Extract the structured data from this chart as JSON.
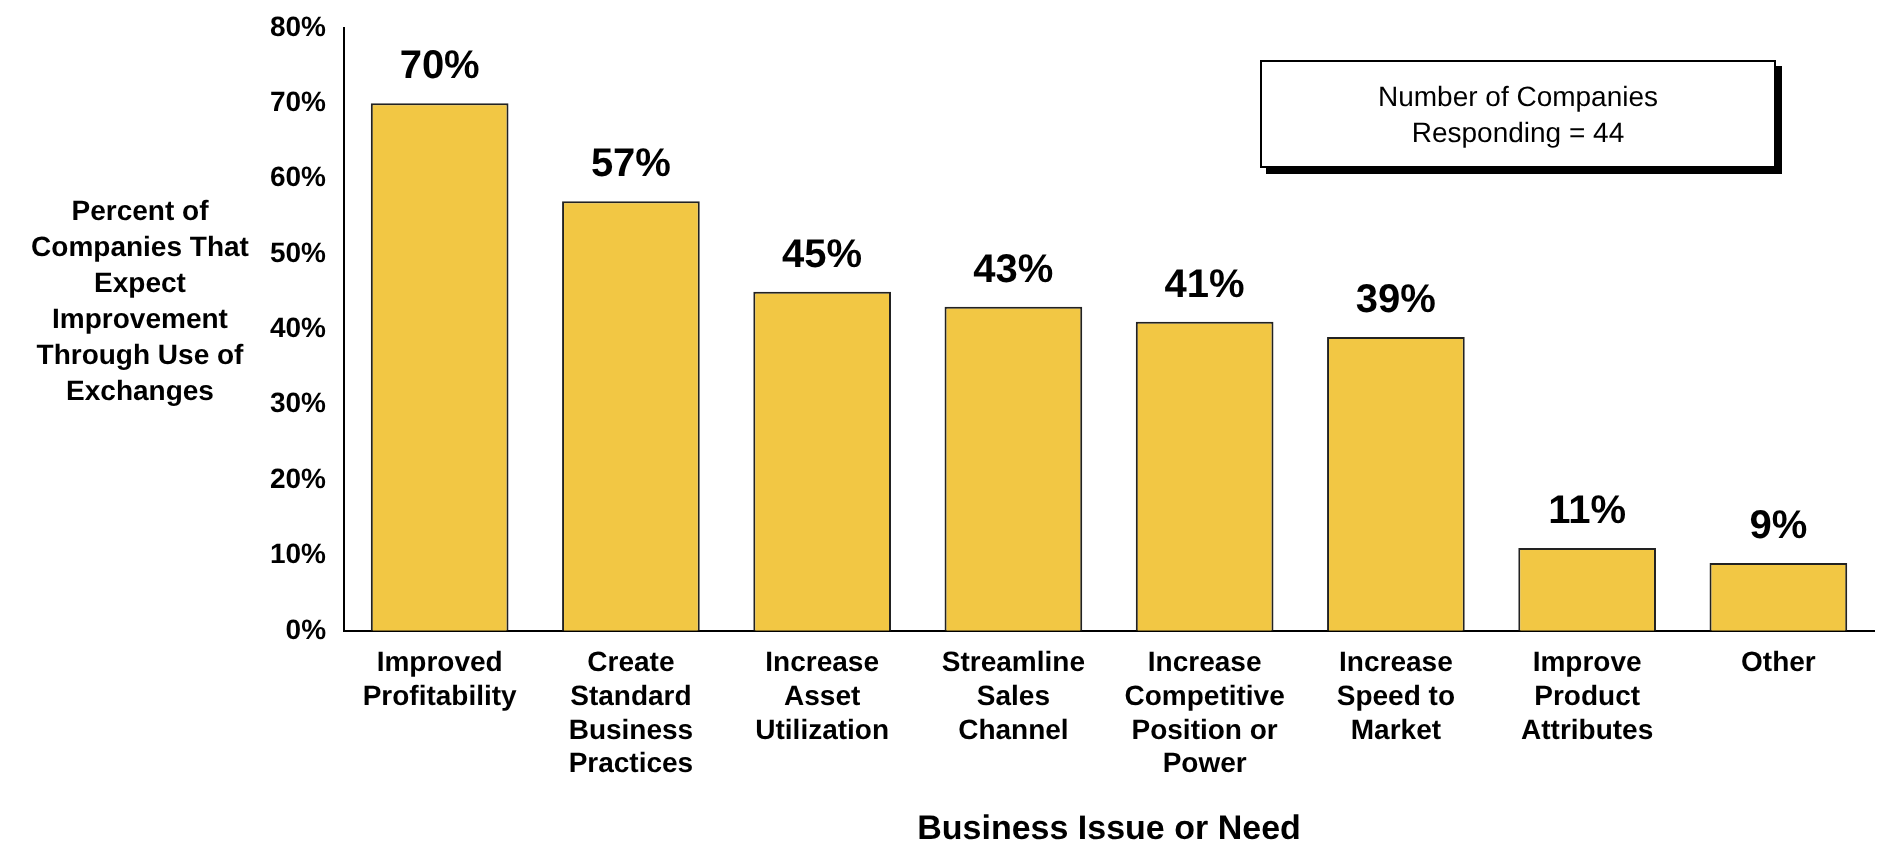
{
  "chart_data": {
    "type": "bar",
    "xlabel": "Business Issue or Need",
    "ylabel": "Percent of Companies That Expect Improvement Through Use of Exchanges",
    "categories": [
      "Improved Profitability",
      "Create Standard Business Practices",
      "Increase Asset Utilization",
      "Streamline Sales Channel",
      "Increase Competitive Position or Power",
      "Increase Speed to Market",
      "Improve Product Attributes",
      "Other"
    ],
    "values": [
      70,
      57,
      45,
      43,
      41,
      39,
      11,
      9
    ],
    "value_labels": [
      "70%",
      "57%",
      "45%",
      "43%",
      "41%",
      "39%",
      "11%",
      "9%"
    ],
    "color": "#f2c744",
    "ylim": [
      0,
      80
    ],
    "yticks": [
      {
        "value": 0,
        "label": "0%"
      },
      {
        "value": 10,
        "label": "10%"
      },
      {
        "value": 20,
        "label": "20%"
      },
      {
        "value": 30,
        "label": "30%"
      },
      {
        "value": 40,
        "label": "40%"
      },
      {
        "value": 50,
        "label": "50%"
      },
      {
        "value": 60,
        "label": "60%"
      },
      {
        "value": 70,
        "label": "70%"
      },
      {
        "value": 80,
        "label": "80%"
      }
    ],
    "grid": false,
    "legend": false,
    "annotations": [
      "Number of Companies Responding = 44"
    ]
  }
}
